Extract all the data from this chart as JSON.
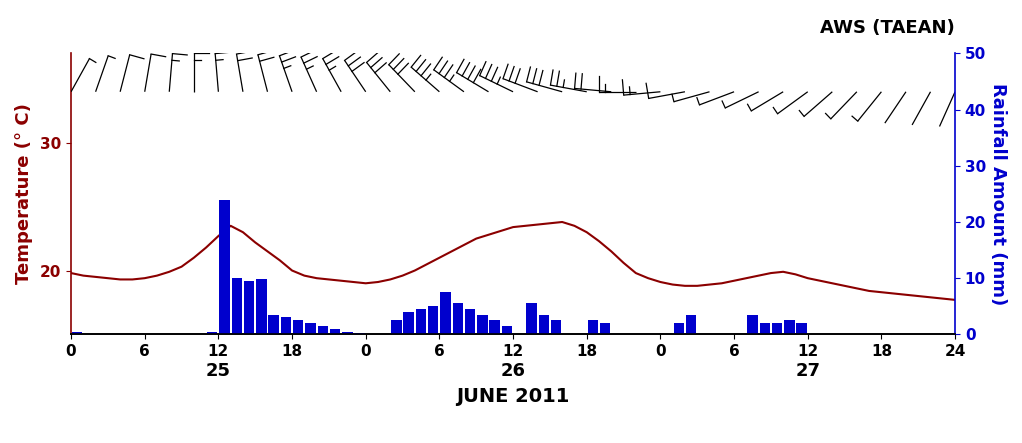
{
  "title": "AWS (TAEAN)",
  "xlabel": "JUNE 2011",
  "ylabel_left": "Temperature (° C)",
  "ylabel_right": "Rainfall Amount (mm)",
  "xlim": [
    0,
    72
  ],
  "ylim_left": [
    15,
    37
  ],
  "ylim_right": [
    0,
    50
  ],
  "xticks": [
    0,
    6,
    12,
    18,
    24,
    30,
    36,
    42,
    48,
    54,
    60,
    66,
    72
  ],
  "xticklabels": [
    "0",
    "6",
    "12",
    "18",
    "0",
    "6",
    "12",
    "18",
    "0",
    "6",
    "12",
    "18",
    "24"
  ],
  "day_labels": [
    {
      "x": 12,
      "label": "25"
    },
    {
      "x": 36,
      "label": "26"
    },
    {
      "x": 60,
      "label": "27"
    }
  ],
  "yticks_left": [
    20,
    30
  ],
  "yticks_right": [
    0,
    10,
    20,
    30,
    40,
    50
  ],
  "temp_color": "#8B0000",
  "rain_color": "#0000CD",
  "barb_color": "#000000",
  "temp_x": [
    0,
    1,
    2,
    3,
    4,
    5,
    6,
    7,
    8,
    9,
    10,
    11,
    12,
    13,
    14,
    15,
    16,
    17,
    18,
    19,
    20,
    21,
    22,
    23,
    24,
    25,
    26,
    27,
    28,
    29,
    30,
    31,
    32,
    33,
    34,
    35,
    36,
    37,
    38,
    39,
    40,
    41,
    42,
    43,
    44,
    45,
    46,
    47,
    48,
    49,
    50,
    51,
    52,
    53,
    54,
    55,
    56,
    57,
    58,
    59,
    60,
    61,
    62,
    63,
    64,
    65,
    66,
    67,
    68,
    69,
    70,
    71,
    72
  ],
  "temp_y": [
    19.8,
    19.6,
    19.5,
    19.4,
    19.3,
    19.3,
    19.4,
    19.6,
    19.9,
    20.3,
    21.0,
    21.8,
    22.7,
    23.5,
    23.0,
    22.2,
    21.5,
    20.8,
    20.0,
    19.6,
    19.4,
    19.3,
    19.2,
    19.1,
    19.0,
    19.1,
    19.3,
    19.6,
    20.0,
    20.5,
    21.0,
    21.5,
    22.0,
    22.5,
    22.8,
    23.1,
    23.4,
    23.5,
    23.6,
    23.7,
    23.8,
    23.5,
    23.0,
    22.3,
    21.5,
    20.6,
    19.8,
    19.4,
    19.1,
    18.9,
    18.8,
    18.8,
    18.9,
    19.0,
    19.2,
    19.4,
    19.6,
    19.8,
    19.9,
    19.7,
    19.4,
    19.2,
    19.0,
    18.8,
    18.6,
    18.4,
    18.3,
    18.2,
    18.1,
    18.0,
    17.9,
    17.8,
    17.7
  ],
  "rain_x": [
    0,
    1,
    2,
    3,
    4,
    5,
    6,
    7,
    8,
    9,
    10,
    11,
    12,
    13,
    14,
    15,
    16,
    17,
    18,
    19,
    20,
    21,
    22,
    23,
    24,
    25,
    26,
    27,
    28,
    29,
    30,
    31,
    32,
    33,
    34,
    35,
    36,
    37,
    38,
    39,
    40,
    41,
    42,
    43,
    44,
    45,
    46,
    47,
    48,
    49,
    50,
    51,
    52,
    53,
    54,
    55,
    56,
    57,
    58,
    59,
    60,
    61,
    62,
    63,
    64,
    65,
    66,
    67,
    68,
    69,
    70,
    71
  ],
  "rain_y": [
    0.5,
    0,
    0,
    0,
    0,
    0,
    0,
    0,
    0,
    0,
    0,
    0.5,
    24,
    10,
    9.5,
    9.8,
    3.5,
    3.0,
    2.5,
    2.0,
    1.5,
    1.0,
    0.5,
    0.2,
    0,
    0,
    2.5,
    4.0,
    4.5,
    5.0,
    7.5,
    5.5,
    4.5,
    3.5,
    2.5,
    1.5,
    0,
    5.5,
    3.5,
    2.5,
    0,
    0,
    2.5,
    2.0,
    0,
    0,
    0,
    0,
    0,
    2.0,
    3.5,
    0,
    0,
    0,
    0,
    3.5,
    2.0,
    2.0,
    2.5,
    2.0,
    0,
    0,
    0,
    0,
    0,
    0,
    0,
    0,
    0,
    0,
    0,
    0
  ],
  "barb_y_level": 34.0,
  "background_color": "#FFFFFF",
  "wind_data": [
    {
      "x": 0,
      "speed": 3,
      "dir_deg": 210
    },
    {
      "x": 2,
      "speed": 5,
      "dir_deg": 200
    },
    {
      "x": 4,
      "speed": 6,
      "dir_deg": 195
    },
    {
      "x": 6,
      "speed": 7,
      "dir_deg": 190
    },
    {
      "x": 8,
      "speed": 8,
      "dir_deg": 185
    },
    {
      "x": 10,
      "speed": 9,
      "dir_deg": 180
    },
    {
      "x": 12,
      "speed": 10,
      "dir_deg": 175
    },
    {
      "x": 14,
      "speed": 11,
      "dir_deg": 170
    },
    {
      "x": 16,
      "speed": 12,
      "dir_deg": 165
    },
    {
      "x": 18,
      "speed": 13,
      "dir_deg": 160
    },
    {
      "x": 20,
      "speed": 14,
      "dir_deg": 155
    },
    {
      "x": 22,
      "speed": 15,
      "dir_deg": 150
    },
    {
      "x": 24,
      "speed": 16,
      "dir_deg": 145
    },
    {
      "x": 26,
      "speed": 17,
      "dir_deg": 140
    },
    {
      "x": 28,
      "speed": 18,
      "dir_deg": 135
    },
    {
      "x": 30,
      "speed": 19,
      "dir_deg": 130
    },
    {
      "x": 32,
      "speed": 20,
      "dir_deg": 125
    },
    {
      "x": 34,
      "speed": 21,
      "dir_deg": 120
    },
    {
      "x": 36,
      "speed": 20,
      "dir_deg": 115
    },
    {
      "x": 38,
      "speed": 18,
      "dir_deg": 110
    },
    {
      "x": 40,
      "speed": 16,
      "dir_deg": 105
    },
    {
      "x": 42,
      "speed": 14,
      "dir_deg": 100
    },
    {
      "x": 44,
      "speed": 12,
      "dir_deg": 95
    },
    {
      "x": 46,
      "speed": 10,
      "dir_deg": 90
    },
    {
      "x": 48,
      "speed": 8,
      "dir_deg": 85
    },
    {
      "x": 50,
      "speed": 6,
      "dir_deg": 80
    },
    {
      "x": 52,
      "speed": 5,
      "dir_deg": 75
    },
    {
      "x": 54,
      "speed": 4,
      "dir_deg": 70
    },
    {
      "x": 56,
      "speed": 3,
      "dir_deg": 65
    },
    {
      "x": 58,
      "speed": 3,
      "dir_deg": 60
    },
    {
      "x": 60,
      "speed": 4,
      "dir_deg": 55
    },
    {
      "x": 62,
      "speed": 5,
      "dir_deg": 50
    },
    {
      "x": 64,
      "speed": 4,
      "dir_deg": 45
    },
    {
      "x": 66,
      "speed": 3,
      "dir_deg": 40
    },
    {
      "x": 68,
      "speed": 2,
      "dir_deg": 35
    },
    {
      "x": 70,
      "speed": 2,
      "dir_deg": 30
    },
    {
      "x": 72,
      "speed": 1,
      "dir_deg": 25
    }
  ]
}
